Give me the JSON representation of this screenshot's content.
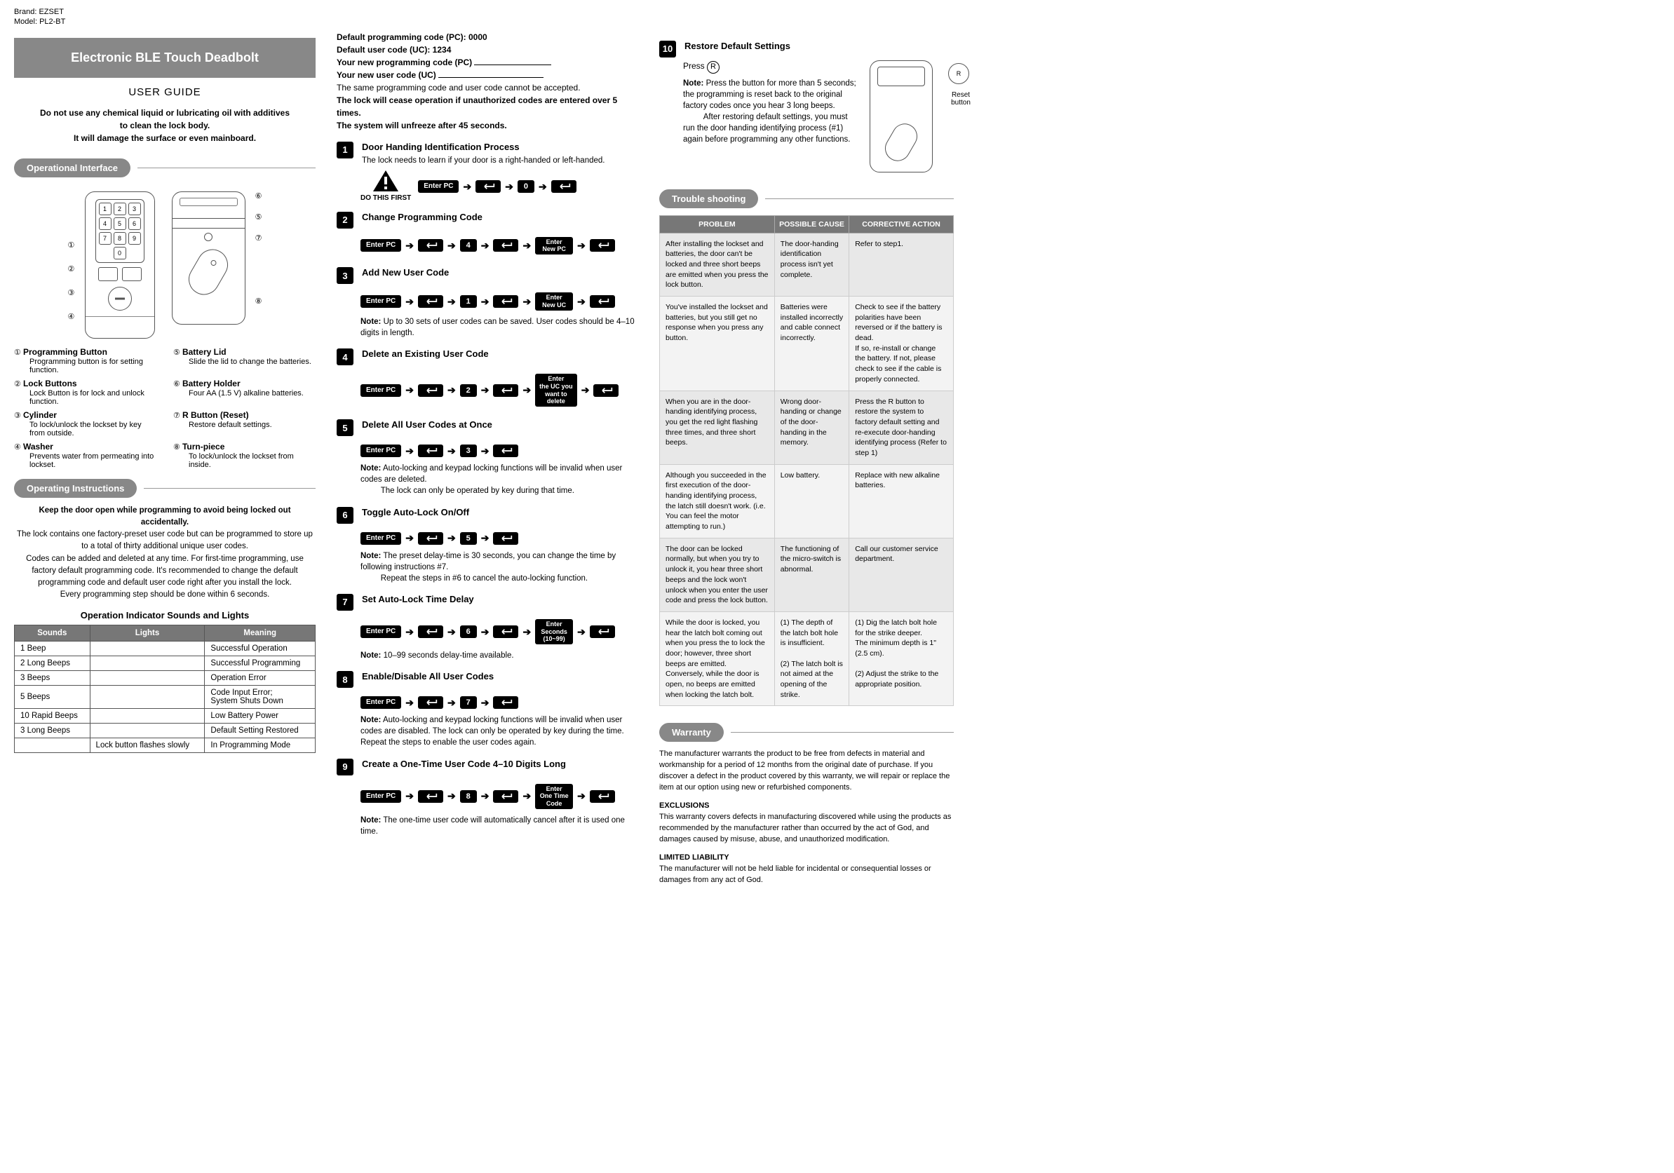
{
  "brand": "Brand: EZSET",
  "model": "Model: PL2-BT",
  "title": "Electronic BLE Touch Deadbolt",
  "userGuide": "USER GUIDE",
  "warning": "Do not use any chemical liquid or lubricating oil with additives\nto clean the lock body.\nIt will damage the surface or even mainboard.",
  "sections": {
    "interface": "Operational Interface",
    "instructions": "Operating Instructions",
    "trouble": "Trouble shooting",
    "warranty": "Warranty"
  },
  "keypad": [
    "1",
    "2",
    "3",
    "4",
    "5",
    "6",
    "7",
    "8",
    "9",
    "",
    "0",
    ""
  ],
  "callouts_left": [
    "①",
    "②",
    "③",
    "④"
  ],
  "callouts_right": [
    "⑥",
    "⑤",
    "⑦",
    "⑧"
  ],
  "legend": [
    {
      "n": "①",
      "t": "Programming Button",
      "d": "Programming button is for setting function."
    },
    {
      "n": "②",
      "t": "Lock Buttons",
      "d": "Lock Button is for lock and unlock function."
    },
    {
      "n": "③",
      "t": "Cylinder",
      "d": "To lock/unlock the lockset by key from outside."
    },
    {
      "n": "④",
      "t": "Washer",
      "d": "Prevents water from permeating into lockset."
    },
    {
      "n": "⑤",
      "t": "Battery Lid",
      "d": "Slide the lid to change the batteries."
    },
    {
      "n": "⑥",
      "t": "Battery Holder",
      "d": "Four AA (1.5 V) alkaline batteries."
    },
    {
      "n": "⑦",
      "t": "R Button (Reset)",
      "d": "Restore default settings."
    },
    {
      "n": "⑧",
      "t": "Turn-piece",
      "d": "To lock/unlock the lockset from inside."
    }
  ],
  "instr_para_bold": "Keep the door open while programming to avoid being locked out accidentally.",
  "instr_para": "The lock contains one factory-preset user code but can be programmed to store up to a total of thirty additional unique user codes.\nCodes can be added and deleted at any time. For first-time programming, use factory default programming code. It's recommended to change the default programming code and default user code right after you install the lock.\nEvery programming step should be done within 6 seconds.",
  "sounds_header": "Operation Indicator Sounds and Lights",
  "sounds_cols": [
    "Sounds",
    "Lights",
    "Meaning"
  ],
  "sounds_rows": [
    [
      "1 Beep",
      "",
      "Successful Operation"
    ],
    [
      "2 Long Beeps",
      "",
      "Successful Programming"
    ],
    [
      "3 Beeps",
      "",
      "Operation Error"
    ],
    [
      "5 Beeps",
      "",
      "Code Input Error;\nSystem Shuts Down"
    ],
    [
      "10 Rapid Beeps",
      "",
      "Low Battery Power"
    ],
    [
      "3 Long Beeps",
      "",
      "Default Setting Restored"
    ],
    [
      "",
      "Lock button flashes slowly",
      "In Programming Mode"
    ]
  ],
  "defaults": {
    "pc": "Default programming code (PC): 0000",
    "uc": "Default user code (UC): 1234",
    "newpc": "Your new programming code (PC)",
    "newuc": "Your new user code (UC)",
    "same": "The same programming code and user code cannot be accepted.",
    "cease": "The lock will cease operation if unauthorized codes are entered over 5 times.",
    "unfreeze": "The system will unfreeze after 45 seconds."
  },
  "enterPC": "Enter PC",
  "arrow": "➔",
  "doThisFirst": "DO THIS FIRST",
  "steps": [
    {
      "n": "1",
      "t": "Door Handing Identification Process",
      "sub": "The lock needs to learn if your door is a right-handed or left-handed.",
      "seq": [
        "EnterPC",
        "arrow",
        "enter",
        "arrow",
        "num:0",
        "arrow",
        "enter"
      ],
      "note": ""
    },
    {
      "n": "2",
      "t": "Change Programming Code",
      "seq": [
        "EnterPC",
        "arrow",
        "enter",
        "arrow",
        "num:4",
        "arrow",
        "enter",
        "arrow",
        "box:Enter\nNew PC",
        "arrow",
        "enter"
      ]
    },
    {
      "n": "3",
      "t": "Add New User Code",
      "seq": [
        "EnterPC",
        "arrow",
        "enter",
        "arrow",
        "num:1",
        "arrow",
        "enter",
        "arrow",
        "box:Enter\nNew UC",
        "arrow",
        "enter"
      ],
      "note": "Note: Up to 30 sets of user codes can be saved. User codes should be 4–10 digits in length."
    },
    {
      "n": "4",
      "t": "Delete an Existing User Code",
      "seq": [
        "EnterPC",
        "arrow",
        "enter",
        "arrow",
        "num:2",
        "arrow",
        "enter",
        "arrow",
        "box:Enter\nthe UC you\nwant to\ndelete",
        "arrow",
        "enter"
      ]
    },
    {
      "n": "5",
      "t": "Delete All User Codes at Once",
      "seq": [
        "EnterPC",
        "arrow",
        "enter",
        "arrow",
        "num:3",
        "arrow",
        "enter"
      ],
      "note": "Note: Auto-locking and keypad locking functions will be invalid when user codes are deleted.\nThe lock can only be operated by key during that time."
    },
    {
      "n": "6",
      "t": "Toggle Auto-Lock On/Off",
      "seq": [
        "EnterPC",
        "arrow",
        "enter",
        "arrow",
        "num:5",
        "arrow",
        "enter"
      ],
      "note": "Note: The preset delay-time is 30 seconds, you can change the time by following instructions #7.\nRepeat the steps in #6 to cancel the auto-locking function."
    },
    {
      "n": "7",
      "t": "Set Auto-Lock Time Delay",
      "seq": [
        "EnterPC",
        "arrow",
        "enter",
        "arrow",
        "num:6",
        "arrow",
        "enter",
        "arrow",
        "box:Enter\nSeconds\n(10~99)",
        "arrow",
        "enter"
      ],
      "note": "Note: 10–99 seconds delay-time available."
    },
    {
      "n": "8",
      "t": "Enable/Disable All User Codes",
      "seq": [
        "EnterPC",
        "arrow",
        "enter",
        "arrow",
        "num:7",
        "arrow",
        "enter"
      ],
      "note": "Note: Auto-locking and keypad locking functions will be invalid when user codes are disabled. The lock can only be operated by key during the time. Repeat the steps to enable the user codes again."
    },
    {
      "n": "9",
      "t": "Create a One-Time User Code 4–10 Digits Long",
      "seq": [
        "EnterPC",
        "arrow",
        "enter",
        "arrow",
        "num:8",
        "arrow",
        "enter",
        "arrow",
        "box:Enter\nOne Time\nCode",
        "arrow",
        "enter"
      ],
      "note": "Note: The one-time user code will automatically cancel after it is used one time."
    }
  ],
  "step10": {
    "n": "10",
    "t": "Restore Default Settings",
    "press": "Press",
    "R": "R",
    "note": "Note: Press the button for more than 5 seconds; the programming is reset back to the original factory codes once you hear 3 long beeps.\nAfter restoring default settings, you must run the door handing identifying process (#1) again before programming any other functions.",
    "resetLabel": "Reset\nbutton",
    "resetR": "R"
  },
  "trouble_cols": [
    "PROBLEM",
    "POSSIBLE CAUSE",
    "CORRECTIVE ACTION"
  ],
  "trouble_rows": [
    [
      "After installing the lockset and batteries, the door can't be locked and three short beeps are emitted when you press the lock button.",
      "The door-handing identification process isn't yet complete.",
      "Refer to step1."
    ],
    [
      "You've installed the lockset and batteries, but you still get no response when you press any button.",
      "Batteries were installed incorrectly and cable connect incorrectly.",
      "Check to see if the battery polarities have been reversed or if the battery is dead.\nIf so, re-install or change the battery. If not, please check to see if the cable is properly connected."
    ],
    [
      "When you are in the door-handing identifying process, you get the red light flashing three times, and three short beeps.",
      "Wrong door-handing or change of the door-handing in the memory.",
      "Press the R button to restore the system to factory default setting and re-execute door-handing identifying process (Refer to step 1)"
    ],
    [
      "Although you succeeded in the first execution of the door-handing identifying process, the latch still doesn't work. (i.e. You can feel the motor attempting to run.)",
      "Low battery.",
      "Replace with new alkaline batteries."
    ],
    [
      "The door can be locked normally, but when you try to unlock it, you hear three short beeps and the lock won't unlock when you enter the user code and press the lock button.",
      "The functioning of the micro-switch is abnormal.",
      "Call our customer service department."
    ],
    [
      "While the door is locked, you hear the latch bolt coming out when you press the to lock the door; however, three short beeps are emitted.\nConversely, while the door is open, no beeps are emitted when locking the latch bolt.",
      "(1) The depth of the latch bolt hole is insufficient.\n\n(2) The latch bolt is not aimed at the opening of the strike.",
      "(1) Dig the latch bolt hole for the strike deeper.\n     The minimum depth is 1\" (2.5 cm).\n\n(2) Adjust the strike to the appropriate position."
    ]
  ],
  "warranty": {
    "p1": "The manufacturer warrants the product to be free from defects in material and workmanship for a period of 12 months from the original date of purchase. If you discover a defect in the product covered by this warranty, we will repair or replace the item at our option using new or refurbished components.",
    "h1": "EXCLUSIONS",
    "p2": "This warranty covers defects in manufacturing discovered while using the products as recommended by the manufacturer rather than occurred by the act of God, and damages caused by misuse, abuse, and unauthorized modification.",
    "h2": "LIMITED LIABILITY",
    "p3": "The manufacturer will not be held liable for incidental or consequential losses or damages from any act of God."
  }
}
